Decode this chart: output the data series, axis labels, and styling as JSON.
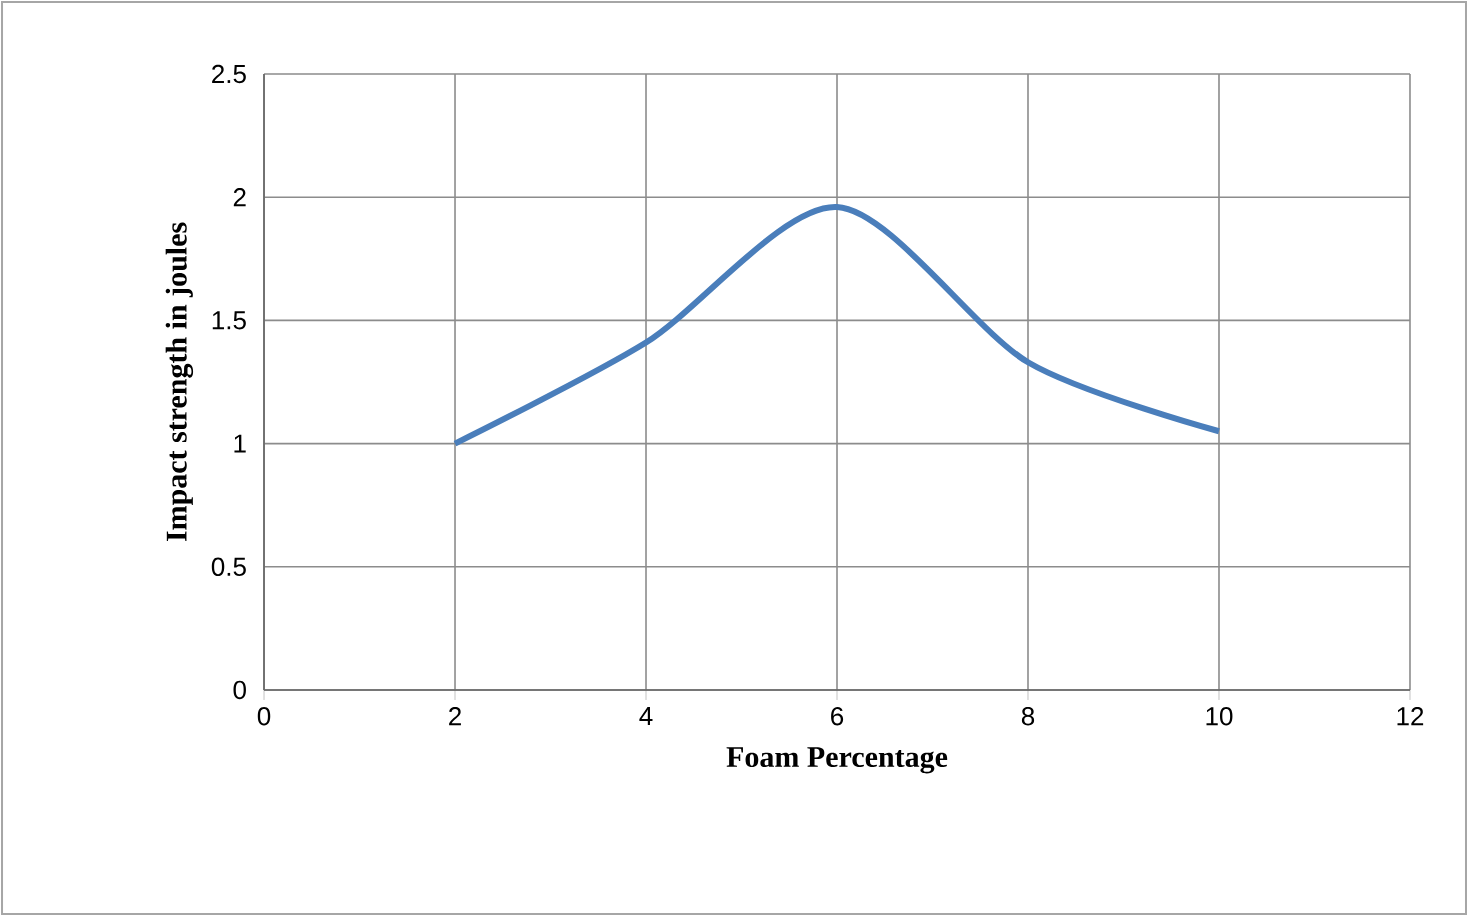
{
  "chart_data": {
    "type": "line",
    "x": [
      2,
      4,
      6,
      8,
      10
    ],
    "series": [
      {
        "color": "#4a7ebb",
        "values": [
          1.0,
          1.41,
          1.96,
          1.33,
          1.05
        ]
      }
    ],
    "xlabel": "Foam Percentage",
    "ylabel": "Impact strength in joules",
    "xlim": [
      0,
      12
    ],
    "xticks": [
      0,
      2,
      4,
      6,
      8,
      10,
      12
    ],
    "ylim": [
      0,
      2.5
    ],
    "yticks": [
      0,
      0.5,
      1,
      1.5,
      2,
      2.5
    ],
    "grid": true,
    "marker": "none"
  }
}
